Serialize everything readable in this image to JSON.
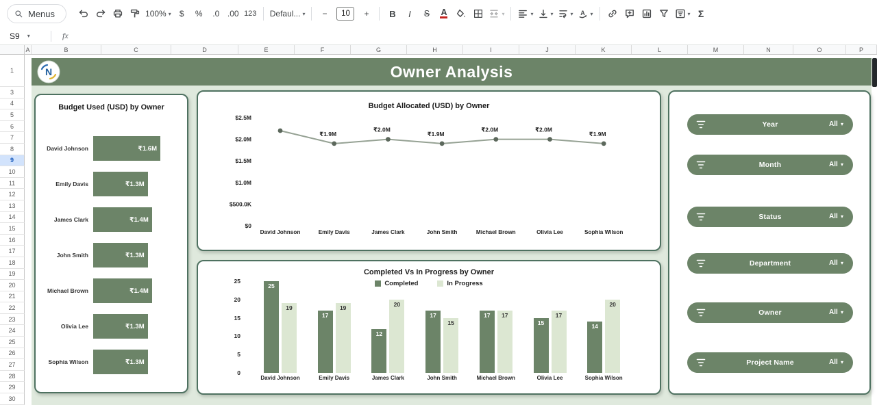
{
  "colors": {
    "accent_green": "#6c8468",
    "light_green_bar": "#dce7d2",
    "panel_border": "#4e7160",
    "dashboard_bg": "#dfe9dd",
    "selected_row_bg": "#d2e3fc"
  },
  "toolbar": {
    "menus_label": "Menus",
    "zoom_value": "100%",
    "currency": "$",
    "percent": "%",
    "decrease_decimals": ".0",
    "increase_decimals": ".00",
    "more_formats": "123",
    "font_name": "Defaul...",
    "decrease_font": "−",
    "font_size": "10",
    "increase_font": "+",
    "bold": "B",
    "italic": "I",
    "strikethrough": "S",
    "text_color": "A",
    "functions": "Σ"
  },
  "formula_bar": {
    "cell_ref": "S9",
    "fx_label": "fx"
  },
  "sheet": {
    "col_headers": [
      "A",
      "B",
      "C",
      "D",
      "E",
      "F",
      "G",
      "H",
      "I",
      "J",
      "K",
      "L",
      "M",
      "N",
      "O",
      "P"
    ],
    "row_numbers": [
      "1",
      "3",
      "4",
      "5",
      "6",
      "7",
      "8",
      "9",
      "10",
      "11",
      "12",
      "13",
      "14",
      "15",
      "16",
      "17",
      "18",
      "19",
      "20",
      "21",
      "22",
      "23",
      "24",
      "25",
      "26",
      "27",
      "28",
      "29",
      "30"
    ],
    "selected_row": "9"
  },
  "banner": {
    "title": "Owner Analysis"
  },
  "filters": {
    "items": [
      {
        "label": "Year",
        "value": "All"
      },
      {
        "label": "Month",
        "value": "All"
      },
      {
        "label": "Status",
        "value": "All"
      },
      {
        "label": "Department",
        "value": "All"
      },
      {
        "label": "Owner",
        "value": "All"
      },
      {
        "label": "Project Name",
        "value": "All"
      }
    ]
  },
  "chart_data": [
    {
      "type": "bar",
      "orientation": "horizontal",
      "title": "Budget Used (USD) by Owner",
      "categories": [
        "David Johnson",
        "Emily Davis",
        "James Clark",
        "John Smith",
        "Michael Brown",
        "Olivia Lee",
        "Sophia Wilson"
      ],
      "values": [
        1.6,
        1.3,
        1.4,
        1.3,
        1.4,
        1.3,
        1.3
      ],
      "labels": [
        "₹1.6M",
        "₹1.3M",
        "₹1.4M",
        "₹1.3M",
        "₹1.4M",
        "₹1.3M",
        "₹1.3M"
      ],
      "unit": "millions USD",
      "xlim": [
        0,
        1.6
      ]
    },
    {
      "type": "line",
      "title": "Budget Allocated (USD) by Owner",
      "categories": [
        "David Johnson",
        "Emily Davis",
        "James Clark",
        "John Smith",
        "Michael Brown",
        "Olivia Lee",
        "Sophia Wilson"
      ],
      "values": [
        2.2,
        1.9,
        2.0,
        1.9,
        2.0,
        2.0,
        1.9
      ],
      "labels": [
        "",
        "₹1.9M",
        "₹2.0M",
        "₹1.9M",
        "₹2.0M",
        "₹2.0M",
        "₹1.9M"
      ],
      "ylim": [
        0,
        2.5
      ],
      "ytick_values": [
        0,
        0.5,
        1.0,
        1.5,
        2.0,
        2.5
      ],
      "ytick_labels": [
        "$0",
        "$500.0K",
        "$1.0M",
        "$1.5M",
        "$2.0M",
        "$2.5M"
      ],
      "grid": false
    },
    {
      "type": "bar",
      "title": "Completed Vs In Progress by Owner",
      "categories": [
        "David Johnson",
        "Emily Davis",
        "James Clark",
        "John Smith",
        "Michael Brown",
        "Olivia Lee",
        "Sophia Wilson"
      ],
      "series": [
        {
          "name": "Completed",
          "values": [
            25,
            17,
            12,
            17,
            17,
            15,
            14
          ]
        },
        {
          "name": "In Progress",
          "values": [
            19,
            19,
            20,
            15,
            17,
            17,
            20
          ]
        }
      ],
      "ylim": [
        0,
        25
      ],
      "yticks": [
        0,
        5,
        10,
        15,
        20,
        25
      ],
      "legend_position": "top"
    }
  ]
}
